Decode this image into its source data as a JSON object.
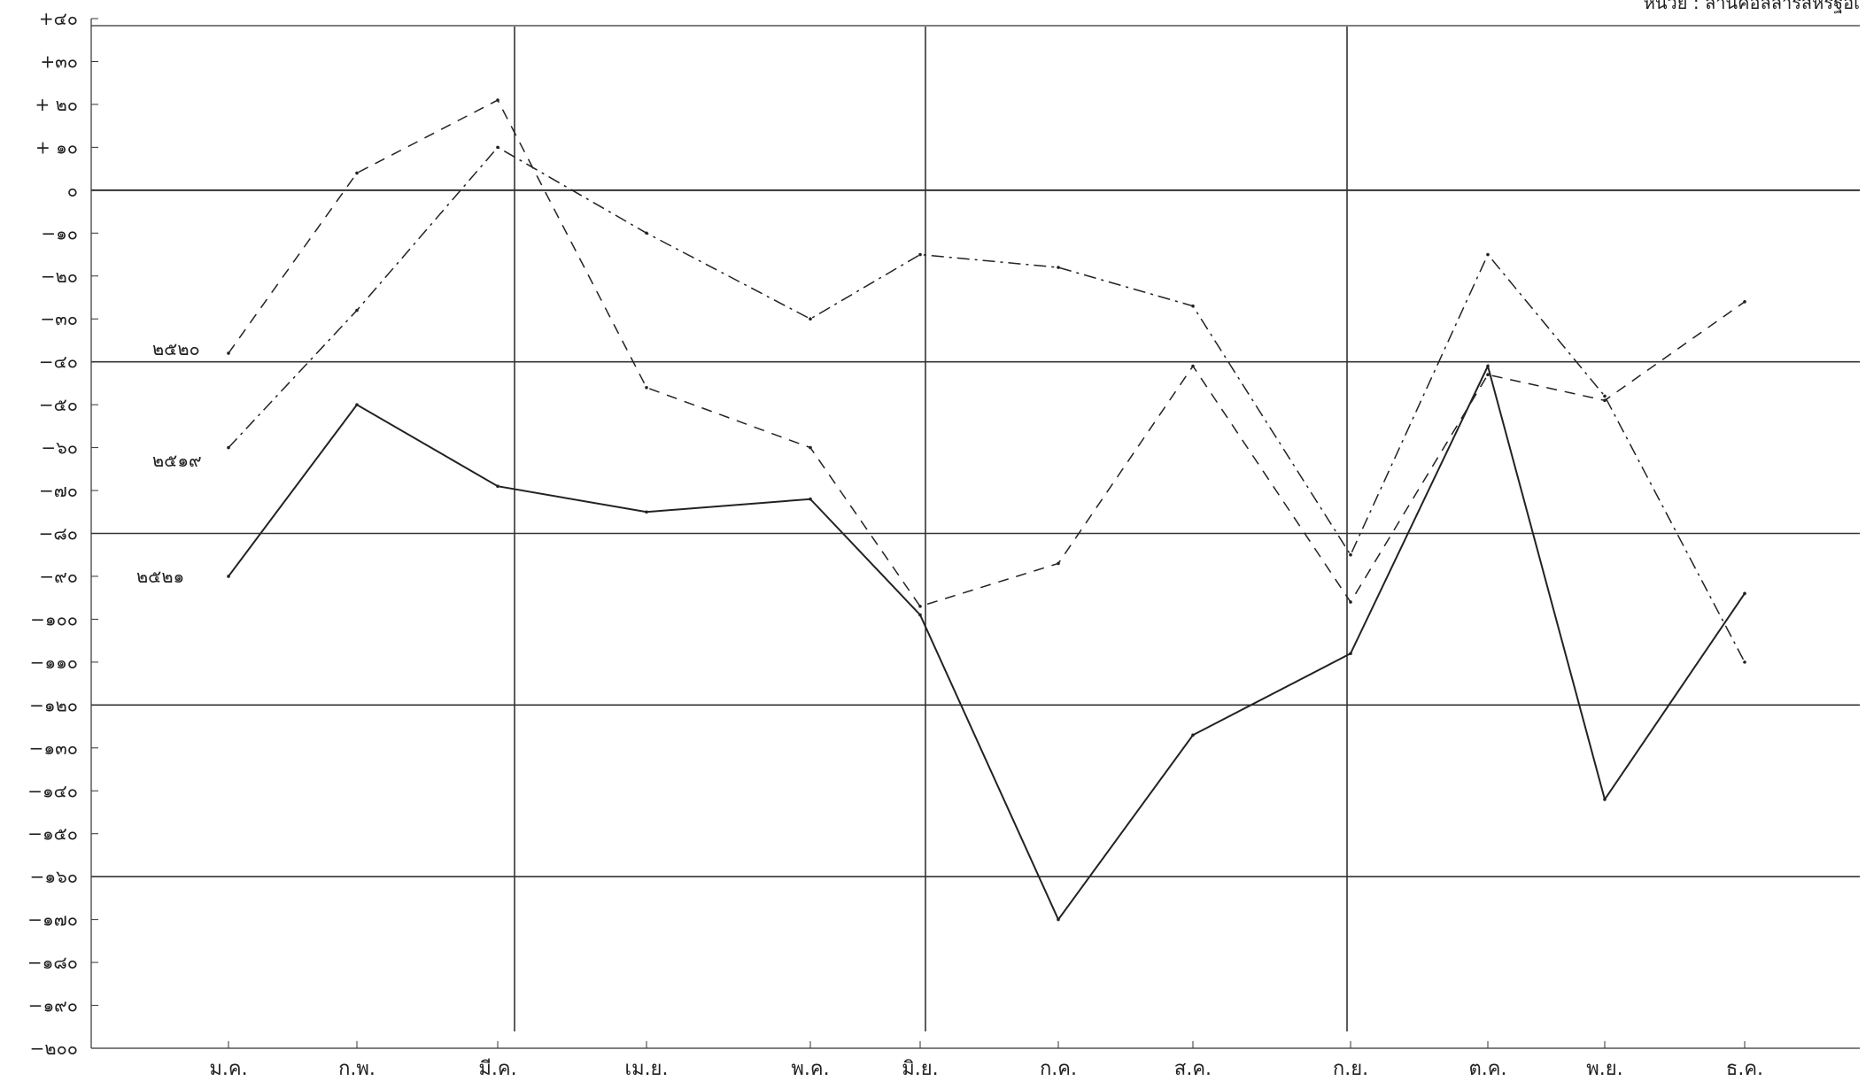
{
  "unit_note": "หน่วย : ล้านคอลลาร์สหรัฐอเ",
  "chart_data": {
    "type": "line",
    "categories": [
      "ม.ค.",
      "ก.พ.",
      "มี.ค.",
      "เม.ย.",
      "พ.ค.",
      "มิ.ย.",
      "ก.ค.",
      "ส.ค.",
      "ก.ย.",
      "ต.ค.",
      "พ.ย.",
      "ธ.ค."
    ],
    "ylim": [
      -200,
      40
    ],
    "yticks": [
      40,
      30,
      20,
      10,
      0,
      -10,
      -20,
      -30,
      -40,
      -50,
      -60,
      -70,
      -80,
      -90,
      -100,
      -110,
      -120,
      -130,
      -140,
      -150,
      -160,
      -170,
      -180,
      -190,
      -200
    ],
    "ytick_labels": [
      "+๔๐",
      "+๓๐",
      "+ ๒๐",
      "+ ๑๐",
      "๐",
      "−๑๐",
      "−๒๐",
      "−๓๐",
      "−๔๐",
      "−๕๐",
      "−๖๐",
      "−๗๐",
      "−๘๐",
      "−๙๐",
      "−๑๐๐",
      "−๑๑๐",
      "−๑๒๐",
      "−๑๓๐",
      "−๑๔๐",
      "−๑๕๐",
      "−๑๖๐",
      "−๑๗๐",
      "−๑๘๐",
      "−๑๙๐",
      "−๒๐๐"
    ],
    "gridlines_y": [
      0,
      -40,
      -80,
      -120,
      -160
    ],
    "series": [
      {
        "name": "๒๕๒๐",
        "style": "dashed",
        "values": [
          -38,
          4,
          21,
          -46,
          -60,
          -97,
          -87,
          -41,
          -96,
          -43,
          -49,
          -26
        ]
      },
      {
        "name": "๒๕๑๙",
        "style": "dash-dot",
        "values": [
          -60,
          -28,
          10,
          -10,
          -30,
          -15,
          -18,
          -27,
          -85,
          -15,
          -48,
          -110
        ]
      },
      {
        "name": "๒๕๒๑",
        "style": "solid",
        "values": [
          -90,
          -50,
          -69,
          -75,
          -72,
          -99,
          -170,
          -127,
          -108,
          -41,
          -142,
          -94
        ]
      }
    ]
  }
}
